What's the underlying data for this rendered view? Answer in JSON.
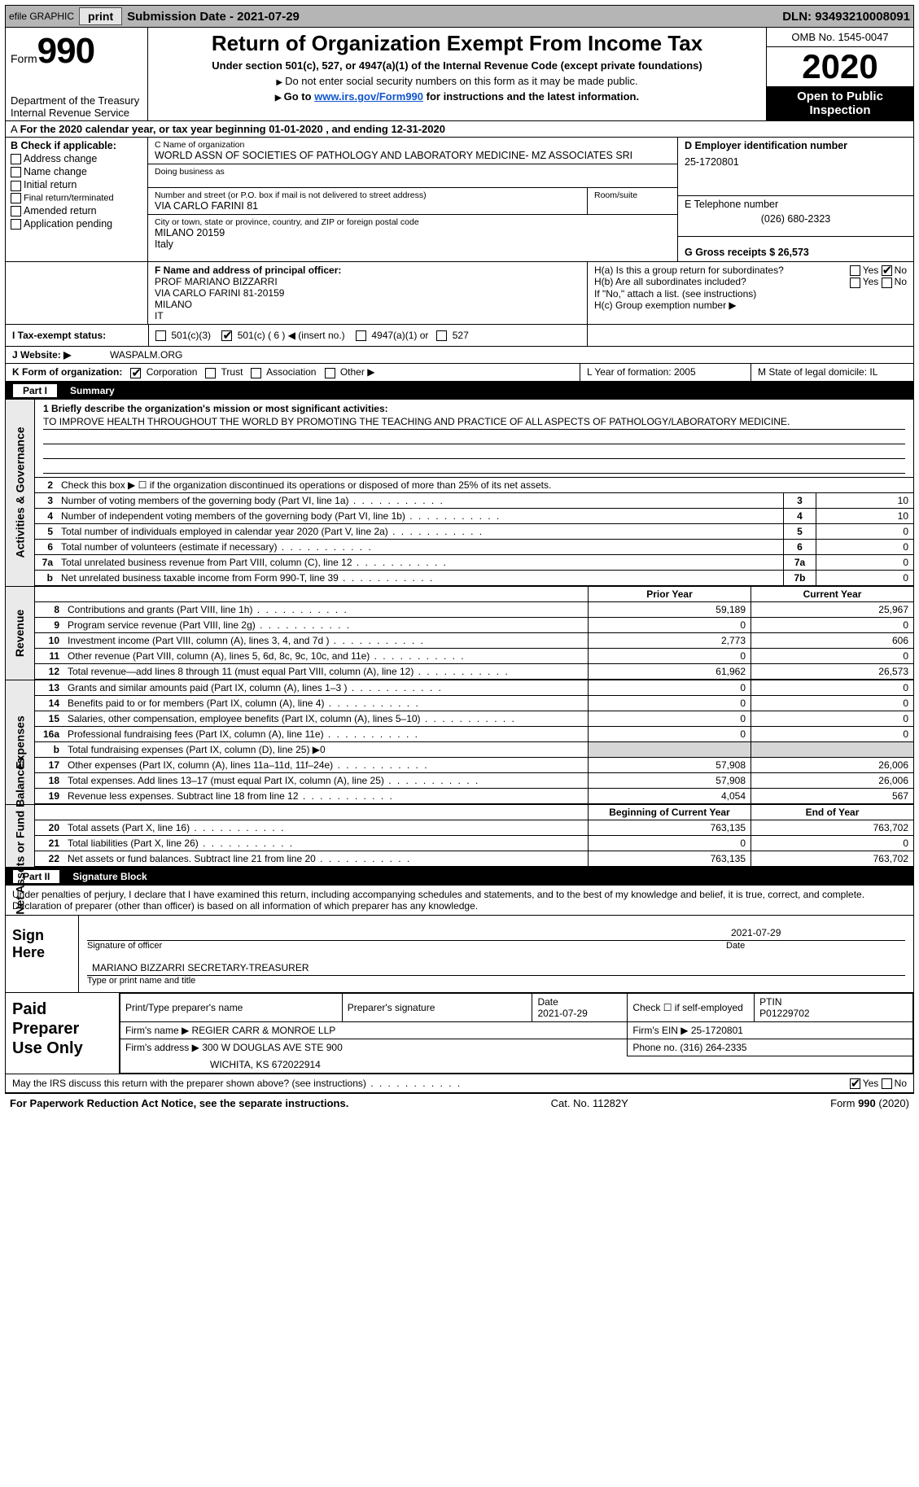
{
  "topbar": {
    "efile": "efile GRAPHIC",
    "print": "print",
    "sub_label": "Submission Date - 2021-07-29",
    "dln": "DLN: 93493210008091"
  },
  "head": {
    "form": "Form",
    "num": "990",
    "dept": "Department of the Treasury\nInternal Revenue Service",
    "title": "Return of Organization Exempt From Income Tax",
    "sub": "Under section 501(c), 527, or 4947(a)(1) of the Internal Revenue Code (except private foundations)",
    "note1": "Do not enter social security numbers on this form as it may be made public.",
    "note2_pre": "Go to ",
    "note2_link": "www.irs.gov/Form990",
    "note2_post": " for instructions and the latest information.",
    "omb": "OMB No. 1545-0047",
    "year": "2020",
    "inspect": "Open to Public Inspection"
  },
  "period": "For the 2020 calendar year, or tax year beginning 01-01-2020   , and ending 12-31-2020",
  "b": {
    "label": "B Check if applicable:",
    "items": [
      "Address change",
      "Name change",
      "Initial return",
      "Final return/terminated",
      "Amended return",
      "Application pending"
    ]
  },
  "c": {
    "name_label": "C Name of organization",
    "name": "WORLD ASSN OF SOCIETIES OF PATHOLOGY AND LABORATORY MEDICINE- MZ ASSOCIATES SRI",
    "dba_label": "Doing business as",
    "addr_label": "Number and street (or P.O. box if mail is not delivered to street address)",
    "room_label": "Room/suite",
    "addr": "VIA CARLO FARINI 81",
    "city_label": "City or town, state or province, country, and ZIP or foreign postal code",
    "city": "MILANO  20159\nItaly"
  },
  "d": {
    "label": "D Employer identification number",
    "val": "25-1720801"
  },
  "e": {
    "label": "E Telephone number",
    "val": "(026) 680-2323"
  },
  "g": {
    "label": "G Gross receipts $ 26,573"
  },
  "f": {
    "label": "F  Name and address of principal officer:",
    "lines": "PROF MARIANO BIZZARRI\nVIA CARLO FARINI 81-20159\nMILANO\nIT"
  },
  "h": {
    "a": "H(a)  Is this a group return for subordinates?",
    "b": "H(b)  Are all subordinates included?",
    "note": "If \"No,\" attach a list. (see instructions)",
    "c": "H(c)  Group exemption number ▶"
  },
  "i": {
    "label": "I    Tax-exempt status:",
    "opts": [
      "501(c)(3)",
      "501(c) ( 6 ) ◀ (insert no.)",
      "4947(a)(1) or",
      "527"
    ]
  },
  "j": {
    "label": "J   Website: ▶",
    "val": "WASPALM.ORG"
  },
  "k": {
    "label": "K Form of organization:",
    "opts": [
      "Corporation",
      "Trust",
      "Association",
      "Other ▶"
    ],
    "l_label": "L Year of formation: 2005",
    "m_label": "M State of legal domicile: IL"
  },
  "part1": {
    "num": "Part I",
    "title": "Summary"
  },
  "activities": {
    "side": "Activities & Governance",
    "q1": "1  Briefly describe the organization's mission or most significant activities:",
    "mission": "TO IMPROVE HEALTH THROUGHOUT THE WORLD BY PROMOTING THE TEACHING AND PRACTICE OF ALL ASPECTS OF PATHOLOGY/LABORATORY MEDICINE.",
    "q2": "Check this box ▶ ☐  if the organization discontinued its operations or disposed of more than 25% of its net assets.",
    "rows": [
      {
        "n": "3",
        "t": "Number of voting members of the governing body (Part VI, line 1a)",
        "box": "3",
        "val": "10"
      },
      {
        "n": "4",
        "t": "Number of independent voting members of the governing body (Part VI, line 1b)",
        "box": "4",
        "val": "10"
      },
      {
        "n": "5",
        "t": "Total number of individuals employed in calendar year 2020 (Part V, line 2a)",
        "box": "5",
        "val": "0"
      },
      {
        "n": "6",
        "t": "Total number of volunteers (estimate if necessary)",
        "box": "6",
        "val": "0"
      },
      {
        "n": "7a",
        "t": "Total unrelated business revenue from Part VIII, column (C), line 12",
        "box": "7a",
        "val": "0"
      },
      {
        "n": "b",
        "t": "Net unrelated business taxable income from Form 990-T, line 39",
        "box": "7b",
        "val": "0"
      }
    ]
  },
  "revenue": {
    "side": "Revenue",
    "head_prior": "Prior Year",
    "head_curr": "Current Year",
    "rows": [
      {
        "n": "8",
        "t": "Contributions and grants (Part VIII, line 1h)",
        "c1": "59,189",
        "c2": "25,967"
      },
      {
        "n": "9",
        "t": "Program service revenue (Part VIII, line 2g)",
        "c1": "0",
        "c2": "0"
      },
      {
        "n": "10",
        "t": "Investment income (Part VIII, column (A), lines 3, 4, and 7d )",
        "c1": "2,773",
        "c2": "606"
      },
      {
        "n": "11",
        "t": "Other revenue (Part VIII, column (A), lines 5, 6d, 8c, 9c, 10c, and 11e)",
        "c1": "0",
        "c2": "0"
      },
      {
        "n": "12",
        "t": "Total revenue—add lines 8 through 11 (must equal Part VIII, column (A), line 12)",
        "c1": "61,962",
        "c2": "26,573"
      }
    ]
  },
  "expenses": {
    "side": "Expenses",
    "rows": [
      {
        "n": "13",
        "t": "Grants and similar amounts paid (Part IX, column (A), lines 1–3 )",
        "c1": "0",
        "c2": "0"
      },
      {
        "n": "14",
        "t": "Benefits paid to or for members (Part IX, column (A), line 4)",
        "c1": "0",
        "c2": "0"
      },
      {
        "n": "15",
        "t": "Salaries, other compensation, employee benefits (Part IX, column (A), lines 5–10)",
        "c1": "0",
        "c2": "0"
      },
      {
        "n": "16a",
        "t": "Professional fundraising fees (Part IX, column (A), line 11e)",
        "c1": "0",
        "c2": "0"
      },
      {
        "n": "b",
        "t": "Total fundraising expenses (Part IX, column (D), line 25) ▶0",
        "c1": "",
        "c2": "",
        "shade": true
      },
      {
        "n": "17",
        "t": "Other expenses (Part IX, column (A), lines 11a–11d, 11f–24e)",
        "c1": "57,908",
        "c2": "26,006"
      },
      {
        "n": "18",
        "t": "Total expenses. Add lines 13–17 (must equal Part IX, column (A), line 25)",
        "c1": "57,908",
        "c2": "26,006"
      },
      {
        "n": "19",
        "t": "Revenue less expenses. Subtract line 18 from line 12",
        "c1": "4,054",
        "c2": "567"
      }
    ]
  },
  "netassets": {
    "side": "Net Assets or Fund Balances",
    "head_prior": "Beginning of Current Year",
    "head_curr": "End of Year",
    "rows": [
      {
        "n": "20",
        "t": "Total assets (Part X, line 16)",
        "c1": "763,135",
        "c2": "763,702"
      },
      {
        "n": "21",
        "t": "Total liabilities (Part X, line 26)",
        "c1": "0",
        "c2": "0"
      },
      {
        "n": "22",
        "t": "Net assets or fund balances. Subtract line 21 from line 20",
        "c1": "763,135",
        "c2": "763,702"
      }
    ]
  },
  "part2": {
    "num": "Part II",
    "title": "Signature Block"
  },
  "sig": {
    "decl": "Under penalties of perjury, I declare that I have examined this return, including accompanying schedules and statements, and to the best of my knowledge and belief, it is true, correct, and complete. Declaration of preparer (other than officer) is based on all information of which preparer has any knowledge.",
    "sign_here": "Sign Here",
    "sig_officer": "Signature of officer",
    "date": "2021-07-29",
    "date_label": "Date",
    "name": "MARIANO BIZZARRI  SECRETARY-TREASURER",
    "name_label": "Type or print name and title"
  },
  "paid": {
    "label": "Paid Preparer Use Only",
    "h1": "Print/Type preparer's name",
    "h2": "Preparer's signature",
    "h3": "Date",
    "h3v": "2021-07-29",
    "h4": "Check ☐ if self-employed",
    "h5": "PTIN",
    "h5v": "P01229702",
    "firm_label": "Firm's name    ▶",
    "firm": "REGIER CARR & MONROE LLP",
    "ein_label": "Firm's EIN ▶",
    "ein": "25-1720801",
    "addr_label": "Firm's address ▶",
    "addr": "300 W DOUGLAS AVE STE 900",
    "addr2": "WICHITA, KS  672022914",
    "phone_label": "Phone no.",
    "phone": "(316) 264-2335"
  },
  "bottom": {
    "discuss": "May the IRS discuss this return with the preparer shown above? (see instructions)",
    "paperwork": "For Paperwork Reduction Act Notice, see the separate instructions.",
    "cat": "Cat. No. 11282Y",
    "form": "Form 990 (2020)"
  },
  "style": {
    "bg_gray": "#b5b5b5",
    "shade": "#d6d6d6",
    "link": "#1155cc"
  }
}
